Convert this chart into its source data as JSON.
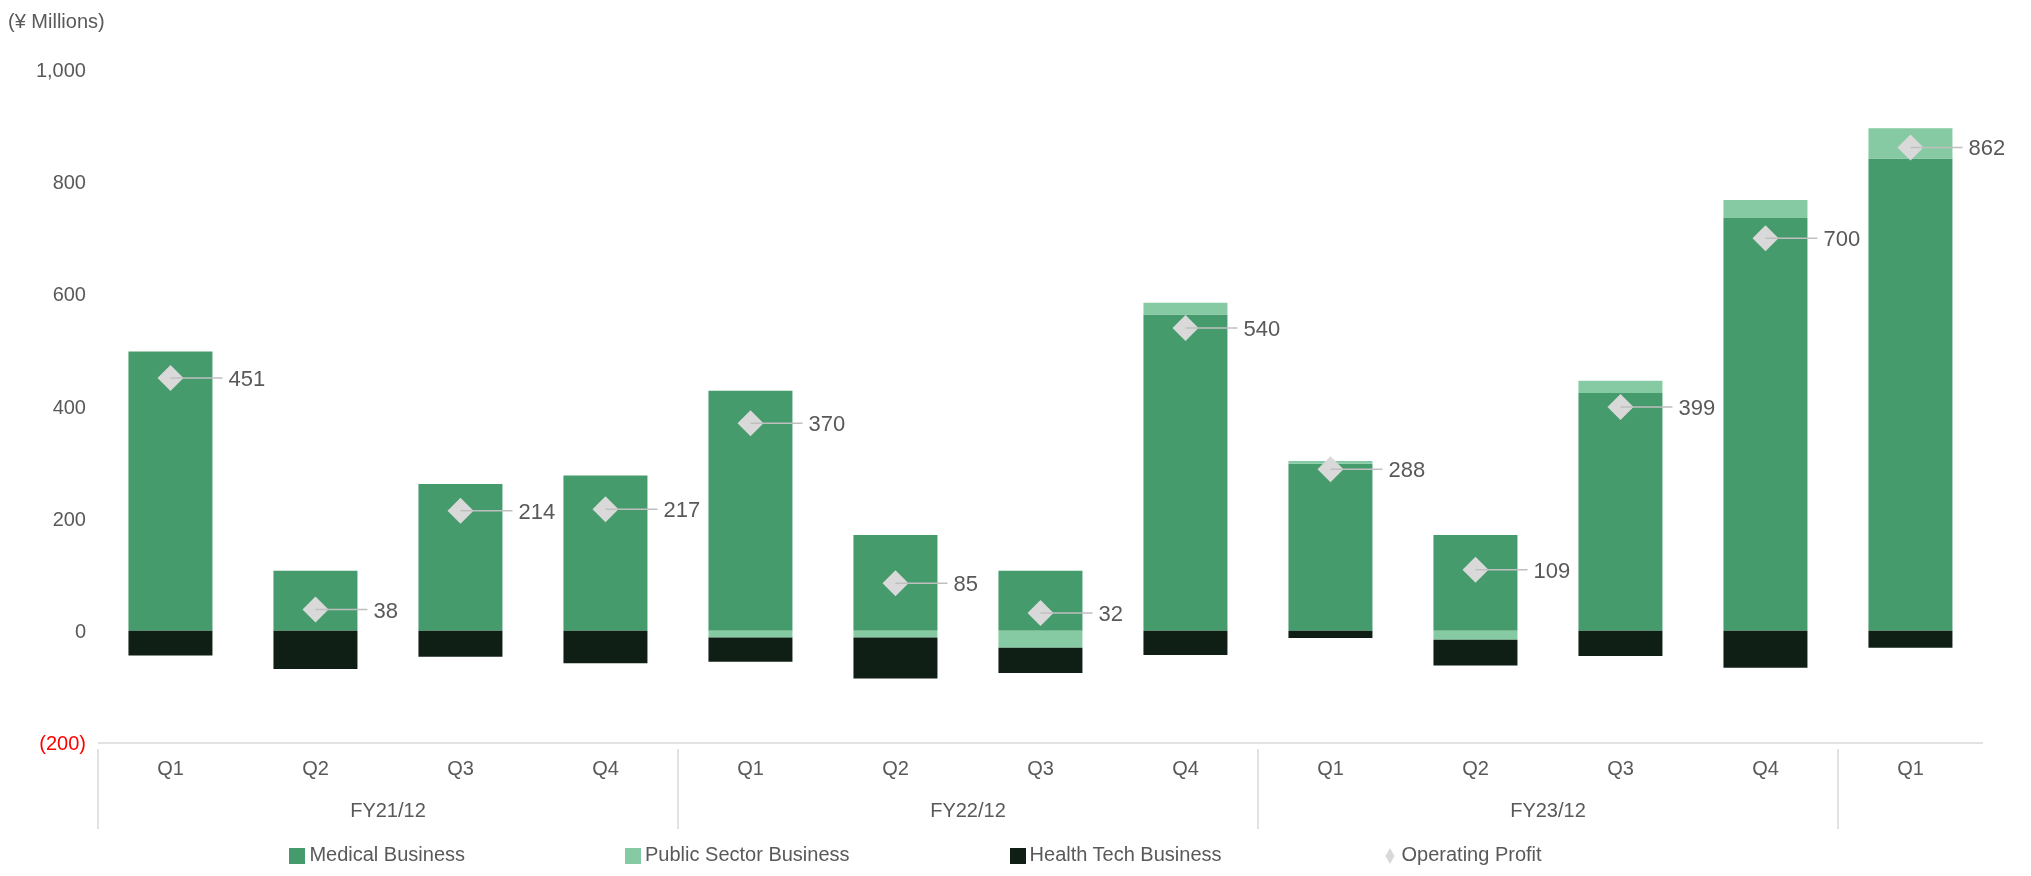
{
  "chart_data": {
    "type": "bar",
    "stacked": true,
    "ylabel": "(¥ Millions)",
    "categories": [
      "Q1",
      "Q2",
      "Q3",
      "Q4",
      "Q1",
      "Q2",
      "Q3",
      "Q4",
      "Q1",
      "Q2",
      "Q3",
      "Q4",
      "Q1"
    ],
    "annotations": [
      "FY21/12",
      "FY22/12",
      "FY23/12"
    ],
    "ylim": [
      -200,
      1000
    ],
    "yticks": [
      {
        "value": -200,
        "label": "(200)"
      },
      0,
      200,
      400,
      600,
      800,
      {
        "value": 1000,
        "label": "1,000"
      }
    ],
    "legend": "bottom",
    "series": [
      {
        "name": "Medical Business",
        "color": "#469b6c",
        "values": [
          498,
          107,
          262,
          277,
          428,
          171,
          107,
          564,
          298,
          171,
          424,
          736,
          842
        ]
      },
      {
        "name": "Public Sector Business",
        "color": "#86caa3",
        "values": [
          0,
          0,
          0,
          0,
          -12,
          -12,
          -30,
          21,
          5,
          -16,
          22,
          32,
          54
        ]
      },
      {
        "name": "Health Tech Business",
        "color": "#0f1f15",
        "values": [
          -44,
          -68,
          -46,
          -58,
          -43,
          -73,
          -45,
          -43,
          -13,
          -46,
          -45,
          -66,
          -30
        ]
      },
      {
        "name": "Operating Profit",
        "type": "scatter",
        "marker": "diamond",
        "color": "#d9d9d9",
        "values": [
          451,
          38,
          214,
          217,
          370,
          85,
          32,
          540,
          288,
          109,
          399,
          700,
          862
        ],
        "value_labels": [
          "451",
          "38",
          "214",
          "217",
          "370",
          "85",
          "32",
          "540",
          "288",
          "109",
          "399",
          "700",
          "862"
        ]
      }
    ]
  }
}
